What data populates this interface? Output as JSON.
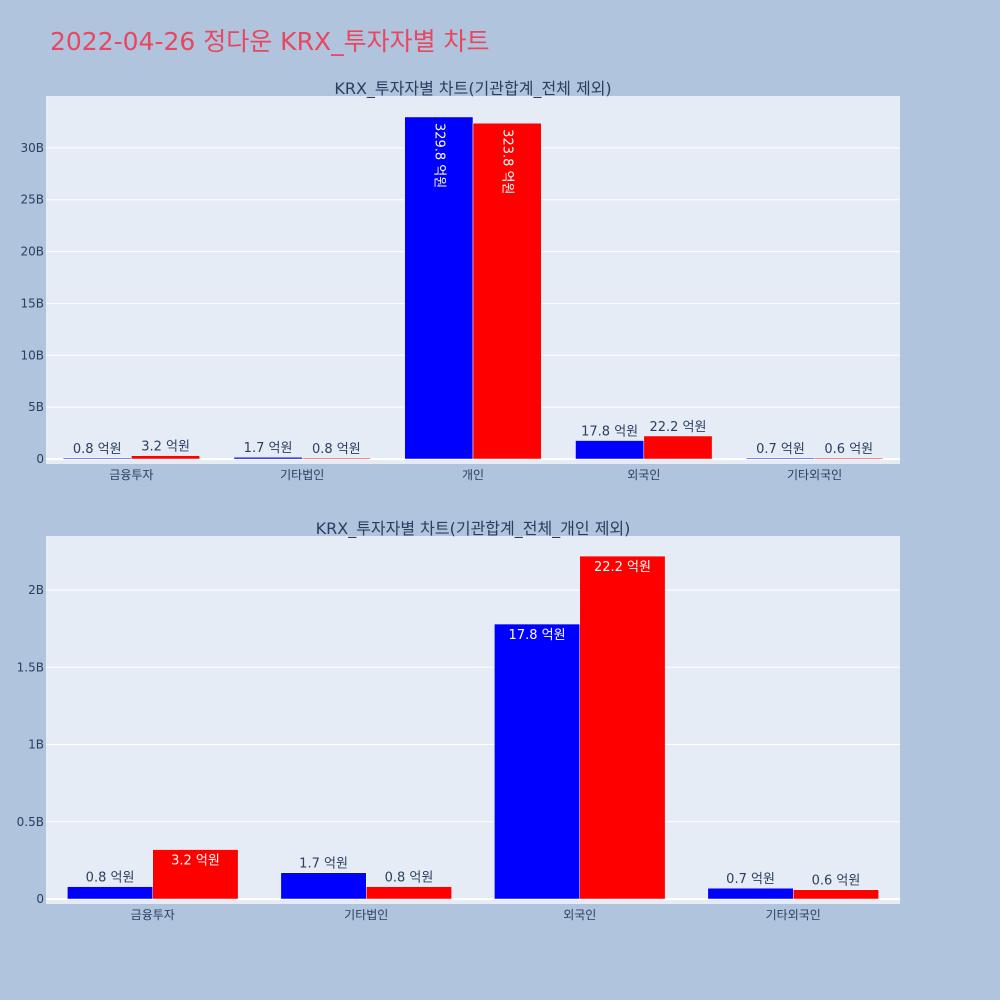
{
  "page": {
    "title": "2022-04-26 정다운 KRX_투자자별 차트",
    "background": "#b0c4de",
    "title_color": "#e8475f"
  },
  "colors": {
    "buy": "#0000ff",
    "sell": "#ff0000",
    "plot_bg": "#e5ecf6",
    "grid": "#ffffff",
    "text": "#2a3f5f"
  },
  "chart_data": [
    {
      "type": "bar",
      "title": "KRX_투자자별 차트(기관합계_전체 제외)",
      "categories": [
        "금융투자",
        "기타법인",
        "개인",
        "외국인",
        "기타외국인"
      ],
      "ylim": [
        0,
        35
      ],
      "yticks": [
        0,
        5,
        10,
        15,
        20,
        25,
        30
      ],
      "ytick_labels": [
        "0",
        "5B",
        "10B",
        "15B",
        "20B",
        "25B",
        "30B"
      ],
      "series": [
        {
          "values": [
            0.08,
            0.17,
            32.98,
            1.78,
            0.07
          ],
          "labels": [
            "0.8 억원",
            "1.7 억원",
            "329.8 억원",
            "17.8 억원",
            "0.7 억원"
          ]
        },
        {
          "values": [
            0.32,
            0.08,
            32.38,
            2.22,
            0.06
          ],
          "labels": [
            "3.2 억원",
            "0.8 억원",
            "323.8 억원",
            "22.2 억원",
            "0.6 억원"
          ]
        }
      ]
    },
    {
      "type": "bar",
      "title": "KRX_투자자별 차트(기관합계_전체_개인 제외)",
      "categories": [
        "금융투자",
        "기타법인",
        "외국인",
        "기타외국인"
      ],
      "ylim": [
        0,
        2.35
      ],
      "yticks": [
        0,
        0.5,
        1,
        1.5,
        2
      ],
      "ytick_labels": [
        "0",
        "0.5B",
        "1B",
        "1.5B",
        "2B"
      ],
      "series": [
        {
          "values": [
            0.08,
            0.17,
            1.78,
            0.07
          ],
          "labels": [
            "0.8 억원",
            "1.7 억원",
            "17.8 억원",
            "0.7 억원"
          ]
        },
        {
          "values": [
            0.32,
            0.08,
            2.22,
            0.06
          ],
          "labels": [
            "3.2 억원",
            "0.8 억원",
            "22.2 억원",
            "0.6 억원"
          ]
        }
      ]
    }
  ]
}
